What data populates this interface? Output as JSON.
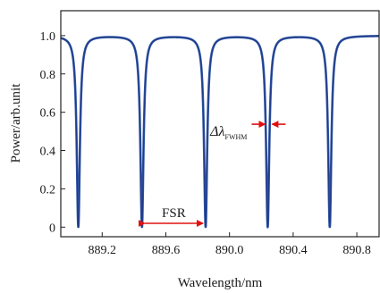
{
  "chart_data": {
    "type": "line",
    "xlabel": "Wavelength/nm",
    "ylabel": "Power/arb.unit",
    "xlim": [
      888.94,
      890.94
    ],
    "ylim": [
      -0.05,
      1.13
    ],
    "x_ticks": [
      "889.2",
      "889.6",
      "890.0",
      "890.4",
      "890.8"
    ],
    "y_ticks": [
      "0",
      "0.2",
      "0.4",
      "0.6",
      "0.8",
      "1.0"
    ],
    "grid": false,
    "colors": {
      "line": "#2f55a4",
      "line_core": "#1a2f7a",
      "annotation": "#e01010"
    },
    "resonance_dips_nm": [
      889.05,
      889.45,
      889.85,
      890.24,
      890.63
    ],
    "baseline_power": 1.0,
    "dip_min_power": 0.0,
    "annotations": {
      "fsr_label": "FSR",
      "fsr_from_nm": 889.45,
      "fsr_to_nm": 889.85,
      "fwhm_symbol": "Δλ",
      "fwhm_subscript": "FWHM",
      "fwhm_at_nm": 890.24,
      "fwhm_level": 0.5
    }
  }
}
